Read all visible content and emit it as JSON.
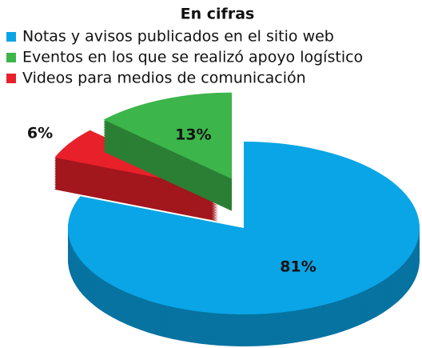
{
  "chart_data": {
    "type": "pie",
    "title": "En cifras",
    "categories": [
      "Notas y avisos publicados en el sitio web",
      "Eventos en los que se realizó apoyo logístico",
      "Videos para medios de comunicación"
    ],
    "values": [
      81,
      13,
      6
    ],
    "value_labels": [
      "81%",
      "13%",
      "6%"
    ],
    "colors": [
      "#0aa5e6",
      "#3cb54a",
      "#e8202a"
    ]
  }
}
